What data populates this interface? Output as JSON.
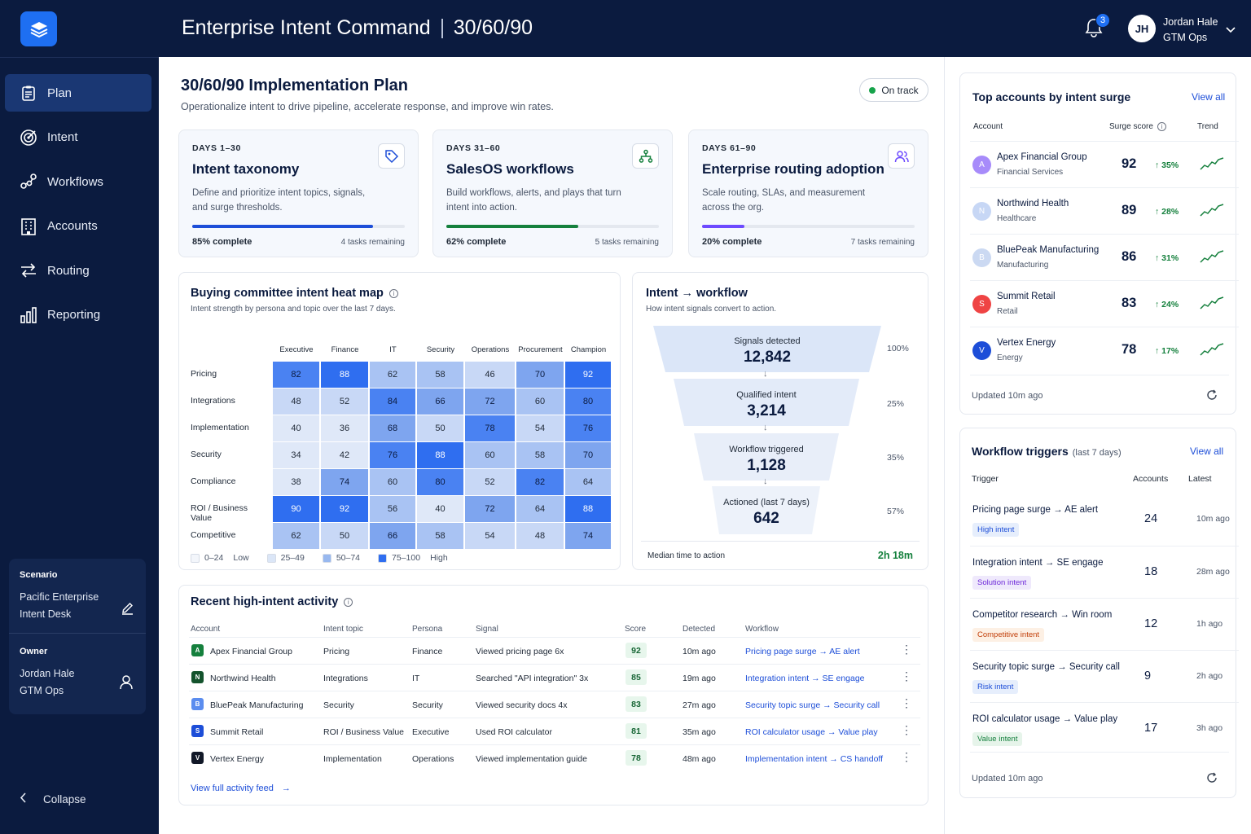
{
  "app": {
    "title": "Enterprise Intent Command",
    "subtitle": "30/60/90"
  },
  "user": {
    "initials": "JH",
    "name": "Jordan Hale",
    "team": "GTM Ops",
    "notifications": "3"
  },
  "nav": [
    {
      "label": "Plan",
      "icon": "clipboard-icon",
      "active": true
    },
    {
      "label": "Intent",
      "icon": "target-icon"
    },
    {
      "label": "Workflows",
      "icon": "workflow-icon"
    },
    {
      "label": "Accounts",
      "icon": "building-icon"
    },
    {
      "label": "Routing",
      "icon": "routing-arrows-icon"
    },
    {
      "label": "Reporting",
      "icon": "bar-chart-icon"
    }
  ],
  "scenario": {
    "label": "Scenario",
    "value": "Pacific Enterprise Intent Desk",
    "owner_label": "Owner",
    "owner_name": "Jordan Hale",
    "owner_team": "GTM Ops"
  },
  "collapse_label": "Collapse",
  "plan": {
    "title": "30/60/90 Implementation Plan",
    "subtitle": "Operationalize intent to drive pipeline, accelerate response, and improve win rates.",
    "status": "On track",
    "status_color": "#16a34a"
  },
  "phases": [
    {
      "days": "DAYS 1–30",
      "title": "Intent taxonomy",
      "desc": "Define and prioritize intent topics, signals, and surge thresholds.",
      "progress": 0.85,
      "pct_label": "85% complete",
      "remaining": "4 tasks remaining",
      "color": "#1d4ed8",
      "icon": "tag-icon"
    },
    {
      "days": "DAYS 31–60",
      "title": "SalesOS workflows",
      "desc": "Build workflows, alerts, and plays that turn intent into action.",
      "progress": 0.62,
      "pct_label": "62% complete",
      "remaining": "5 tasks remaining",
      "color": "#15803d",
      "icon": "hierarchy-icon"
    },
    {
      "days": "DAYS 61–90",
      "title": "Enterprise routing adoption",
      "desc": "Scale routing, SLAs, and measurement across the org.",
      "progress": 0.2,
      "pct_label": "20% complete",
      "remaining": "7 tasks remaining",
      "color": "#6d4aff",
      "icon": "users-icon"
    }
  ],
  "heatmap": {
    "title": "Buying committee intent heat map",
    "subtitle": "Intent strength by persona and topic over the last 7 days.",
    "columns": [
      "Executive",
      "Finance",
      "IT",
      "Security",
      "Operations",
      "Procurement",
      "Champion"
    ],
    "rows": [
      "Pricing",
      "Integrations",
      "Implementation",
      "Security",
      "Compliance",
      "ROI / Business Value",
      "Competitive"
    ],
    "values": [
      [
        82,
        88,
        62,
        58,
        46,
        70,
        92
      ],
      [
        48,
        52,
        84,
        66,
        72,
        60,
        80
      ],
      [
        40,
        36,
        68,
        50,
        78,
        54,
        76
      ],
      [
        34,
        42,
        76,
        88,
        60,
        58,
        70
      ],
      [
        38,
        74,
        60,
        80,
        52,
        82,
        64
      ],
      [
        90,
        92,
        56,
        40,
        72,
        64,
        88
      ],
      [
        62,
        50,
        66,
        58,
        54,
        48,
        74
      ]
    ],
    "legend": [
      {
        "range": "0–24",
        "label": "Low",
        "color": "#f3f6fb"
      },
      {
        "range": "25–49",
        "label": "",
        "color": "#dbe6f7"
      },
      {
        "range": "50–74",
        "label": "",
        "color": "#98b8ef"
      },
      {
        "range": "75–100",
        "label": "High",
        "color": "#2f6ef0"
      }
    ]
  },
  "funnel": {
    "title": "Intent → workflow",
    "subtitle": "How intent signals convert to action.",
    "stages": [
      {
        "label": "Signals detected",
        "value": "12,842",
        "pct": "100%"
      },
      {
        "label": "Qualified intent",
        "value": "3,214",
        "pct": "25%"
      },
      {
        "label": "Workflow triggered",
        "value": "1,128",
        "pct": "35%"
      },
      {
        "label": "Actioned (last 7 days)",
        "value": "642",
        "pct": "57%"
      }
    ],
    "median_label": "Median time to action",
    "median_value": "2h 18m"
  },
  "activity": {
    "title": "Recent high-intent activity",
    "headers": [
      "Account",
      "Intent topic",
      "Persona",
      "Signal",
      "Score",
      "Detected",
      "Workflow"
    ],
    "rows": [
      {
        "account": "Apex Financial Group",
        "icon": "A",
        "icon_color": "#15803d",
        "topic": "Pricing",
        "persona": "Finance",
        "signal": "Viewed pricing page 6x",
        "score": "92",
        "detected": "10m ago",
        "workflow": "Pricing page surge → AE alert"
      },
      {
        "account": "Northwind Health",
        "icon": "N",
        "icon_color": "#14532d",
        "topic": "Integrations",
        "persona": "IT",
        "signal": "Searched \"API integration\" 3x",
        "score": "85",
        "detected": "19m ago",
        "workflow": "Integration intent → SE engage"
      },
      {
        "account": "BluePeak Manufacturing",
        "icon": "B",
        "icon_color": "#5b8def",
        "topic": "Security",
        "persona": "Security",
        "signal": "Viewed security docs 4x",
        "score": "83",
        "detected": "27m ago",
        "workflow": "Security topic surge → Security call"
      },
      {
        "account": "Summit Retail",
        "icon": "S",
        "icon_color": "#1d4ed8",
        "topic": "ROI / Business Value",
        "persona": "Executive",
        "signal": "Used ROI calculator",
        "score": "81",
        "detected": "35m ago",
        "workflow": "ROI calculator usage → Value play"
      },
      {
        "account": "Vertex Energy",
        "icon": "V",
        "icon_color": "#111827",
        "topic": "Implementation",
        "persona": "Operations",
        "signal": "Viewed implementation guide",
        "score": "78",
        "detected": "48m ago",
        "workflow": "Implementation intent → CS handoff"
      }
    ],
    "footer_link": "View full activity feed"
  },
  "top_accounts": {
    "title": "Top accounts by intent surge",
    "view_all": "View all",
    "headers": {
      "account": "Account",
      "score": "Surge score",
      "trend": "Trend"
    },
    "rows": [
      {
        "name": "Apex Financial Group",
        "industry": "Financial Services",
        "score": "92",
        "change": "35%",
        "avatar_color": "#a78bfa",
        "avatar": "A"
      },
      {
        "name": "Northwind Health",
        "industry": "Healthcare",
        "score": "89",
        "change": "28%",
        "avatar_color": "#c7d7f5",
        "avatar": "N"
      },
      {
        "name": "BluePeak Manufacturing",
        "industry": "Manufacturing",
        "score": "86",
        "change": "31%",
        "avatar_color": "#cbd9f2",
        "avatar": "B"
      },
      {
        "name": "Summit Retail",
        "industry": "Retail",
        "score": "83",
        "change": "24%",
        "avatar_color": "#ef4444",
        "avatar": "S"
      },
      {
        "name": "Vertex Energy",
        "industry": "Energy",
        "score": "78",
        "change": "17%",
        "avatar_color": "#1d4ed8",
        "avatar": "V"
      }
    ],
    "updated": "Updated 10m ago"
  },
  "triggers": {
    "title": "Workflow triggers",
    "period": "(last 7 days)",
    "view_all": "View all",
    "headers": {
      "trigger": "Trigger",
      "accounts": "Accounts",
      "latest": "Latest"
    },
    "rows": [
      {
        "name": "Pricing page surge → AE alert",
        "tag": "High intent",
        "tag_color": "#1d4ed8",
        "tag_bg": "#e6eefc",
        "count": "24",
        "latest": "10m ago"
      },
      {
        "name": "Integration intent → SE engage",
        "tag": "Solution intent",
        "tag_color": "#6d28d9",
        "tag_bg": "#efe9fc",
        "count": "18",
        "latest": "28m ago"
      },
      {
        "name": "Competitor research → Win room",
        "tag": "Competitive intent",
        "tag_color": "#c2410c",
        "tag_bg": "#fdf0e4",
        "count": "12",
        "latest": "1h ago"
      },
      {
        "name": "Security topic surge → Security call",
        "tag": "Risk intent",
        "tag_color": "#1d4ed8",
        "tag_bg": "#e6eefc",
        "count": "9",
        "latest": "2h ago"
      },
      {
        "name": "ROI calculator usage → Value play",
        "tag": "Value intent",
        "tag_color": "#15803d",
        "tag_bg": "#e6f4ea",
        "count": "17",
        "latest": "3h ago"
      }
    ],
    "updated": "Updated 10m ago"
  }
}
